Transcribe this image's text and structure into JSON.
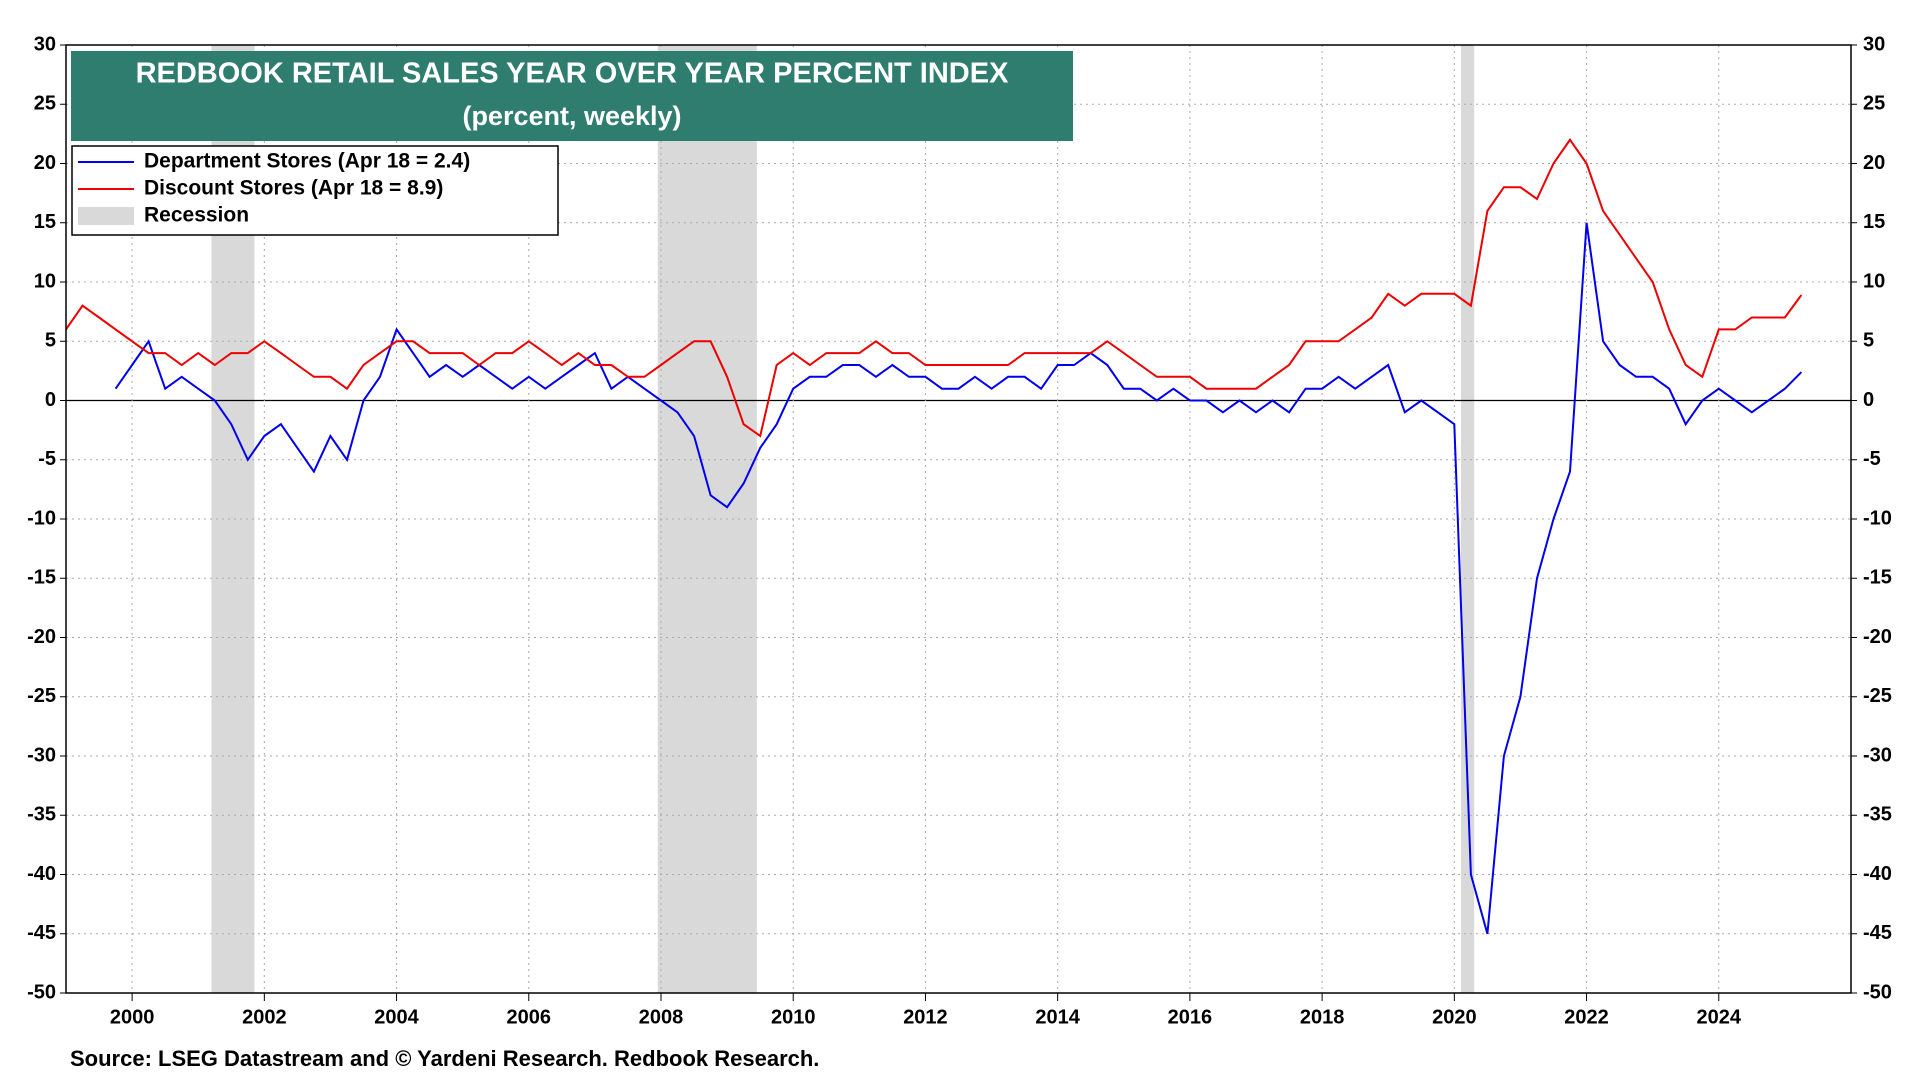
{
  "chart_data": {
    "type": "line",
    "title": "REDBOOK RETAIL SALES YEAR OVER YEAR PERCENT INDEX",
    "subtitle": "(percent, weekly)",
    "source": "Source: LSEG Datastream and © Yardeni Research. Redbook Research.",
    "x": [
      1999,
      1999.25,
      1999.5,
      1999.75,
      2000,
      2000.25,
      2000.5,
      2000.75,
      2001,
      2001.25,
      2001.5,
      2001.75,
      2002,
      2002.25,
      2002.5,
      2002.75,
      2003,
      2003.25,
      2003.5,
      2003.75,
      2004,
      2004.25,
      2004.5,
      2004.75,
      2005,
      2005.25,
      2005.5,
      2005.75,
      2006,
      2006.25,
      2006.5,
      2006.75,
      2007,
      2007.25,
      2007.5,
      2007.75,
      2008,
      2008.25,
      2008.5,
      2008.75,
      2009,
      2009.25,
      2009.5,
      2009.75,
      2010,
      2010.25,
      2010.5,
      2010.75,
      2011,
      2011.25,
      2011.5,
      2011.75,
      2012,
      2012.25,
      2012.5,
      2012.75,
      2013,
      2013.25,
      2013.5,
      2013.75,
      2014,
      2014.25,
      2014.5,
      2014.75,
      2015,
      2015.25,
      2015.5,
      2015.75,
      2016,
      2016.25,
      2016.5,
      2016.75,
      2017,
      2017.25,
      2017.5,
      2017.75,
      2018,
      2018.25,
      2018.5,
      2018.75,
      2019,
      2019.25,
      2019.5,
      2019.75,
      2020,
      2020.25,
      2020.5,
      2020.75,
      2021,
      2021.25,
      2021.5,
      2021.75,
      2022,
      2022.25,
      2022.5,
      2022.75,
      2023,
      2023.25,
      2023.5,
      2023.75,
      2024,
      2024.25,
      2024.5,
      2024.75,
      2025,
      2025.25
    ],
    "series": [
      {
        "name": "Department Stores (Apr 18 = 2.4)",
        "color": "#0000ee",
        "values": [
          null,
          null,
          null,
          1,
          3,
          5,
          1,
          2,
          1,
          0,
          -2,
          -5,
          -3,
          -2,
          -4,
          -6,
          -3,
          -5,
          0,
          2,
          6,
          4,
          2,
          3,
          2,
          3,
          2,
          1,
          2,
          1,
          2,
          3,
          4,
          1,
          2,
          1,
          0,
          -1,
          -3,
          -8,
          -9,
          -7,
          -4,
          -2,
          1,
          2,
          2,
          3,
          3,
          2,
          3,
          2,
          2,
          1,
          1,
          2,
          1,
          2,
          2,
          1,
          3,
          3,
          4,
          3,
          1,
          1,
          0,
          1,
          0,
          0,
          -1,
          0,
          -1,
          0,
          -1,
          1,
          1,
          2,
          1,
          2,
          3,
          -1,
          0,
          -1,
          -2,
          -40,
          -45,
          -30,
          -25,
          -15,
          -10,
          -6,
          15,
          5,
          3,
          2,
          2,
          1,
          -2,
          0,
          1,
          0,
          -1,
          0,
          1,
          2.4
        ]
      },
      {
        "name": "Discount Stores (Apr 18 = 8.9)",
        "color": "#ee0000",
        "values": [
          6,
          8,
          7,
          6,
          5,
          4,
          4,
          3,
          4,
          3,
          4,
          4,
          5,
          4,
          3,
          2,
          2,
          1,
          3,
          4,
          5,
          5,
          4,
          4,
          4,
          3,
          4,
          4,
          5,
          4,
          3,
          4,
          3,
          3,
          2,
          2,
          3,
          4,
          5,
          5,
          2,
          -2,
          -3,
          3,
          4,
          3,
          4,
          4,
          4,
          5,
          4,
          4,
          3,
          3,
          3,
          3,
          3,
          3,
          4,
          4,
          4,
          4,
          4,
          5,
          4,
          3,
          2,
          2,
          2,
          1,
          1,
          1,
          1,
          2,
          3,
          5,
          5,
          5,
          6,
          7,
          9,
          8,
          9,
          9,
          9,
          8,
          16,
          18,
          18,
          17,
          20,
          22,
          20,
          16,
          14,
          12,
          10,
          6,
          3,
          2,
          6,
          6,
          7,
          7,
          7,
          8.9
        ]
      }
    ],
    "recessions": {
      "name": "Recession",
      "color": "#d9d9d9",
      "ranges": [
        [
          2001.2,
          2001.85
        ],
        [
          2007.95,
          2009.45
        ],
        [
          2020.1,
          2020.3
        ]
      ]
    },
    "xlim": [
      1999,
      2026
    ],
    "xticks": [
      2000,
      2002,
      2004,
      2006,
      2008,
      2010,
      2012,
      2014,
      2016,
      2018,
      2020,
      2022,
      2024
    ],
    "ylim": [
      -50,
      30
    ],
    "yticks": [
      -50,
      -45,
      -40,
      -35,
      -30,
      -25,
      -20,
      -15,
      -10,
      -5,
      0,
      5,
      10,
      15,
      20,
      25,
      30
    ],
    "grid": true
  }
}
